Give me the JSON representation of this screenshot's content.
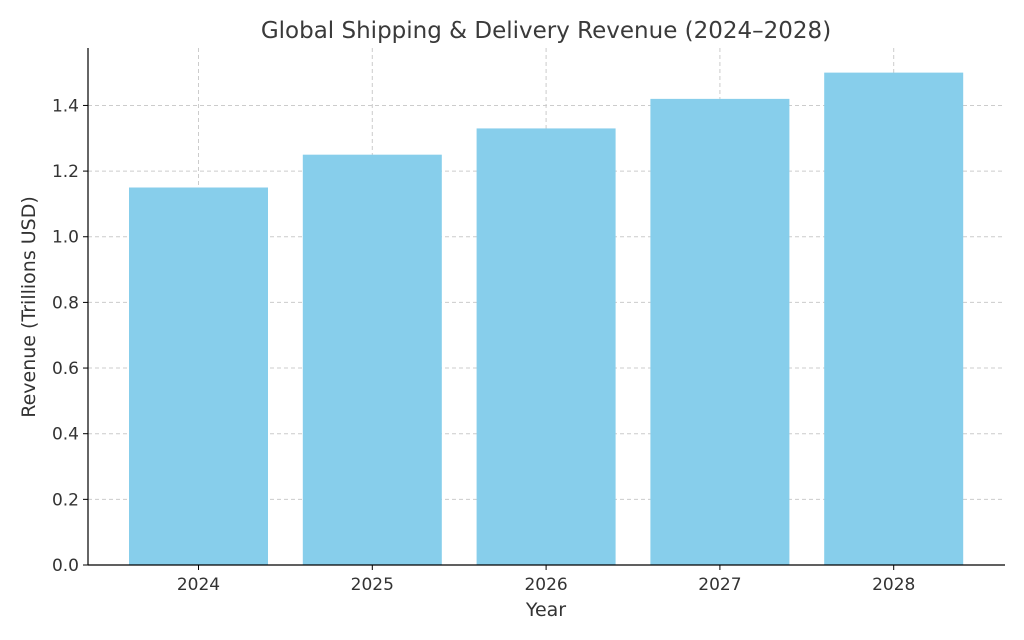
{
  "chart_data": {
    "type": "bar",
    "title": "Global Shipping & Delivery Revenue (2024–2028)",
    "xlabel": "Year",
    "ylabel": "Revenue (Trillions USD)",
    "categories": [
      "2024",
      "2025",
      "2026",
      "2027",
      "2028"
    ],
    "values": [
      1.15,
      1.25,
      1.33,
      1.42,
      1.5
    ],
    "ylim": [
      0,
      1.575
    ],
    "yticks": [
      0.0,
      0.2,
      0.4,
      0.6,
      0.8,
      1.0,
      1.2,
      1.4
    ],
    "ytick_labels": [
      "0.0",
      "0.2",
      "0.4",
      "0.6",
      "0.8",
      "1.0",
      "1.2",
      "1.4"
    ],
    "grid": true,
    "bar_color": "#87ceeb"
  }
}
